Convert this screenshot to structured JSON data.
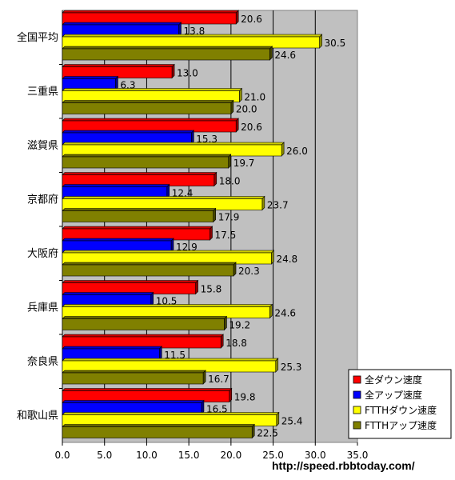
{
  "chart_data": {
    "type": "bar",
    "orientation": "horizontal",
    "categories": [
      "全国平均",
      "三重県",
      "滋賀県",
      "京都府",
      "大阪府",
      "兵庫県",
      "奈良県",
      "和歌山県"
    ],
    "series": [
      {
        "name": "全ダウン速度",
        "color": "#ff0000",
        "values": [
          20.6,
          13.0,
          20.6,
          18.0,
          17.5,
          15.8,
          18.8,
          19.8
        ]
      },
      {
        "name": "全アップ速度",
        "color": "#0000ff",
        "values": [
          13.8,
          6.3,
          15.3,
          12.4,
          12.9,
          10.5,
          11.5,
          16.5
        ]
      },
      {
        "name": "FTTHダウン速度",
        "color": "#ffff00",
        "values": [
          30.5,
          21.0,
          26.0,
          23.7,
          24.8,
          24.6,
          25.3,
          25.4
        ]
      },
      {
        "name": "FTTHアップ速度",
        "color": "#808000",
        "values": [
          24.6,
          20.0,
          19.7,
          17.9,
          20.3,
          19.2,
          16.7,
          22.5
        ]
      }
    ],
    "xlim": [
      0,
      35
    ],
    "xticks": [
      "0.0",
      "5.0",
      "10.0",
      "15.0",
      "20.0",
      "25.0",
      "30.0",
      "35.0"
    ],
    "grid": true,
    "legend_position": "bottom-right",
    "plot_background": "#c0c0c0"
  },
  "footer": {
    "url": "http://speed.rbbtoday.com/"
  }
}
